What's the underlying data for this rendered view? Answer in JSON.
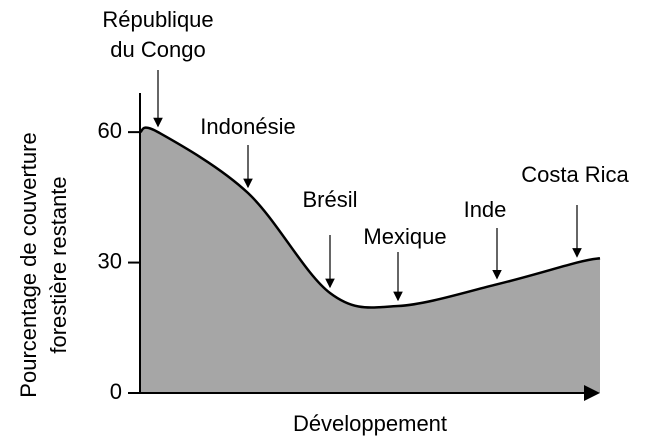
{
  "chart_data": {
    "type": "area",
    "x_label": "Développement",
    "y_label": [
      "Pourcentage de couverture",
      "forestière restante"
    ],
    "categories": [
      null,
      "République du Congo",
      "Indonésie",
      "Brésil",
      "Mexique",
      "Inde",
      "Costa Rica",
      null
    ],
    "values": [
      60,
      60,
      46,
      23,
      20,
      25,
      30,
      31
    ],
    "ylim": [
      0,
      69
    ],
    "yticks": [
      0,
      30,
      60
    ],
    "color": "#a6a6a6",
    "line_color": "#000000"
  }
}
